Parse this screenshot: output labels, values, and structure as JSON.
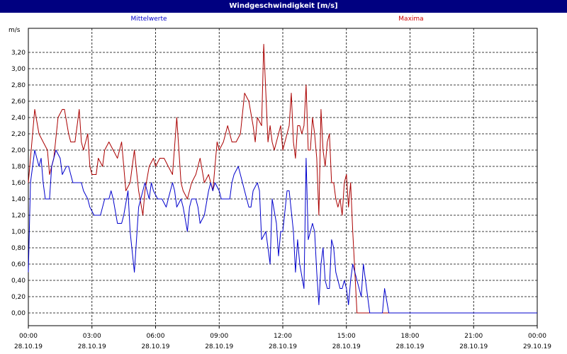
{
  "window": {
    "title": "Windgeschwindigkeit [m/s]"
  },
  "colors": {
    "titlebar": "#000080",
    "mean": "#0000cc",
    "max": "#aa0000",
    "grid": "#000000"
  },
  "chart_data": {
    "type": "line",
    "title": "Windgeschwindigkeit [m/s]",
    "ylabel": "m/s",
    "ylim": [
      0,
      3.4
    ],
    "y_ticks": [
      "0,00",
      "0,20",
      "0,40",
      "0,60",
      "0,80",
      "1,00",
      "1,20",
      "1,40",
      "1,60",
      "1,80",
      "2,00",
      "2,20",
      "2,40",
      "2,60",
      "2,80",
      "3,00",
      "3,20"
    ],
    "x_range_hours": [
      0,
      24
    ],
    "x_ticks": [
      {
        "time": "00:00",
        "date": "28.10.19"
      },
      {
        "time": "03:00",
        "date": "28.10.19"
      },
      {
        "time": "06:00",
        "date": "28.10.19"
      },
      {
        "time": "09:00",
        "date": "28.10.19"
      },
      {
        "time": "12:00",
        "date": "28.10.19"
      },
      {
        "time": "15:00",
        "date": "28.10.19"
      },
      {
        "time": "18:00",
        "date": "28.10.19"
      },
      {
        "time": "21:00",
        "date": "28.10.19"
      },
      {
        "time": "00:00",
        "date": "29.10.19"
      }
    ],
    "grid": true,
    "series": [
      {
        "name": "Mittelwerte",
        "color": "#0000cc",
        "x_hours": [
          0.0,
          0.1,
          0.2,
          0.3,
          0.5,
          0.6,
          0.7,
          0.8,
          1.0,
          1.1,
          1.2,
          1.3,
          1.5,
          1.6,
          1.8,
          1.9,
          2.1,
          2.2,
          2.4,
          2.5,
          2.6,
          2.8,
          2.9,
          3.1,
          3.2,
          3.4,
          3.6,
          3.8,
          3.9,
          4.0,
          4.2,
          4.4,
          4.5,
          4.7,
          4.8,
          5.0,
          5.2,
          5.4,
          5.5,
          5.6,
          5.7,
          5.8,
          5.9,
          6.1,
          6.2,
          6.3,
          6.5,
          6.6,
          6.8,
          6.9,
          7.0,
          7.2,
          7.3,
          7.5,
          7.6,
          7.7,
          7.8,
          7.9,
          8.0,
          8.1,
          8.3,
          8.5,
          8.6,
          8.7,
          8.8,
          9.0,
          9.1,
          9.3,
          9.5,
          9.6,
          9.7,
          9.9,
          10.0,
          10.2,
          10.4,
          10.5,
          10.6,
          10.8,
          10.9,
          11.0,
          11.2,
          11.3,
          11.4,
          11.5,
          11.7,
          11.8,
          11.9,
          12.0,
          12.2,
          12.3,
          12.5,
          12.6,
          12.7,
          12.8,
          13.0,
          13.1,
          13.2,
          13.3,
          13.4,
          13.5,
          13.6,
          13.7,
          13.8,
          13.9,
          14.0,
          14.1,
          14.2,
          14.3,
          14.4,
          14.5,
          14.6,
          14.7,
          14.8,
          14.9,
          15.0,
          15.1,
          15.2,
          15.3,
          15.5,
          15.7,
          15.8,
          16.0,
          16.1,
          16.2,
          16.3,
          16.4,
          16.5,
          16.6,
          16.7,
          16.8,
          17.0,
          17.2,
          17.5,
          18.0,
          18.5,
          18.8,
          19.0,
          19.2,
          19.5,
          20.0,
          20.5,
          21.0,
          21.5,
          22.0,
          22.5,
          23.0,
          23.5,
          24.0
        ],
        "values": [
          0.5,
          1.6,
          1.8,
          2.0,
          1.8,
          1.9,
          1.6,
          1.4,
          1.4,
          1.8,
          1.9,
          2.0,
          1.9,
          1.7,
          1.8,
          1.8,
          1.6,
          1.6,
          1.6,
          1.6,
          1.5,
          1.4,
          1.3,
          1.2,
          1.2,
          1.2,
          1.4,
          1.4,
          1.5,
          1.4,
          1.1,
          1.1,
          1.2,
          1.5,
          1.0,
          0.5,
          1.3,
          1.5,
          1.6,
          1.5,
          1.4,
          1.6,
          1.5,
          1.4,
          1.4,
          1.4,
          1.3,
          1.4,
          1.6,
          1.5,
          1.3,
          1.4,
          1.3,
          1.0,
          1.3,
          1.4,
          1.4,
          1.4,
          1.3,
          1.1,
          1.2,
          1.5,
          1.6,
          1.5,
          1.6,
          1.5,
          1.4,
          1.4,
          1.4,
          1.6,
          1.7,
          1.8,
          1.7,
          1.5,
          1.3,
          1.3,
          1.5,
          1.6,
          1.5,
          0.9,
          1.0,
          0.8,
          0.6,
          1.4,
          1.1,
          0.7,
          1.0,
          1.0,
          1.5,
          1.5,
          1.0,
          0.5,
          0.9,
          0.6,
          0.3,
          1.9,
          0.9,
          1.0,
          1.1,
          1.0,
          0.5,
          0.1,
          0.6,
          0.8,
          0.4,
          0.3,
          0.3,
          0.9,
          0.8,
          0.5,
          0.4,
          0.3,
          0.3,
          0.4,
          0.3,
          0.1,
          0.4,
          0.6,
          0.4,
          0.2,
          0.6,
          0.2,
          0.0,
          0.0,
          0.0,
          0.0,
          0.0,
          0.0,
          0.0,
          0.3,
          0.0,
          0.0,
          0.0,
          0.0,
          0.0,
          0.0,
          0.0,
          0.0,
          0.0,
          0.0,
          0.0,
          0.0,
          0.0,
          0.0,
          0.0,
          0.0,
          0.0,
          0.0
        ]
      },
      {
        "name": "Maxima",
        "color": "#aa0000",
        "x_hours": [
          0.0,
          0.2,
          0.3,
          0.5,
          0.7,
          0.9,
          1.0,
          1.2,
          1.4,
          1.6,
          1.7,
          1.9,
          2.0,
          2.2,
          2.4,
          2.5,
          2.6,
          2.8,
          2.9,
          3.0,
          3.2,
          3.3,
          3.5,
          3.6,
          3.8,
          4.0,
          4.2,
          4.4,
          4.6,
          4.8,
          5.0,
          5.2,
          5.4,
          5.5,
          5.7,
          5.9,
          6.0,
          6.2,
          6.4,
          6.6,
          6.8,
          7.0,
          7.2,
          7.3,
          7.5,
          7.7,
          7.9,
          8.1,
          8.3,
          8.5,
          8.7,
          8.9,
          9.0,
          9.2,
          9.4,
          9.6,
          9.8,
          10.0,
          10.2,
          10.4,
          10.6,
          10.7,
          10.8,
          11.0,
          11.1,
          11.3,
          11.4,
          11.5,
          11.6,
          11.8,
          11.9,
          12.0,
          12.2,
          12.3,
          12.4,
          12.5,
          12.6,
          12.7,
          12.8,
          12.9,
          13.0,
          13.1,
          13.2,
          13.3,
          13.4,
          13.5,
          13.6,
          13.7,
          13.8,
          13.9,
          14.0,
          14.1,
          14.2,
          14.3,
          14.4,
          14.5,
          14.6,
          14.7,
          14.8,
          14.9,
          15.0,
          15.1,
          15.2,
          15.3,
          15.5,
          15.6,
          15.7,
          15.9,
          16.0,
          16.2,
          16.4,
          16.5,
          16.6,
          16.7,
          16.9,
          17.0,
          17.2,
          17.5,
          18.0,
          18.5,
          18.8,
          19.0,
          19.3,
          19.5,
          20.0,
          20.5,
          20.8,
          21.0,
          21.3,
          21.5,
          22.0,
          22.5,
          22.7,
          23.0,
          23.5,
          24.0
        ],
        "values": [
          1.6,
          2.2,
          2.5,
          2.2,
          2.1,
          2.0,
          1.7,
          1.9,
          2.4,
          2.5,
          2.5,
          2.2,
          2.1,
          2.1,
          2.5,
          2.1,
          2.0,
          2.2,
          1.8,
          1.7,
          1.7,
          1.9,
          1.8,
          2.0,
          2.1,
          2.0,
          1.9,
          2.1,
          1.5,
          1.6,
          2.0,
          1.5,
          1.2,
          1.5,
          1.8,
          1.9,
          1.8,
          1.9,
          1.9,
          1.8,
          1.7,
          2.4,
          1.6,
          1.5,
          1.4,
          1.6,
          1.7,
          1.9,
          1.6,
          1.7,
          1.5,
          2.1,
          2.0,
          2.1,
          2.3,
          2.1,
          2.1,
          2.2,
          2.7,
          2.6,
          2.3,
          2.1,
          2.4,
          2.3,
          3.3,
          2.1,
          2.3,
          2.1,
          2.0,
          2.2,
          2.3,
          2.0,
          2.2,
          2.3,
          2.7,
          2.1,
          1.9,
          2.3,
          2.3,
          2.2,
          2.3,
          2.8,
          2.0,
          2.0,
          2.4,
          2.2,
          1.9,
          1.2,
          2.5,
          2.0,
          1.8,
          2.1,
          2.2,
          1.6,
          1.6,
          1.4,
          1.3,
          1.4,
          1.2,
          1.6,
          1.7,
          1.3,
          1.6,
          1.0,
          0.0,
          0.0,
          0.0,
          0.0,
          0.0,
          0.0,
          0.0,
          0.0,
          0.0,
          0.0,
          0.0,
          0.0,
          0.0,
          0.0,
          0.0,
          0.0,
          0.0,
          0.0,
          0.0,
          0.0,
          0.0,
          0.0,
          0.0,
          0.0,
          0.0,
          0.0,
          0.0,
          0.0,
          0.0,
          0.0,
          0.0,
          0.0
        ]
      }
    ]
  }
}
